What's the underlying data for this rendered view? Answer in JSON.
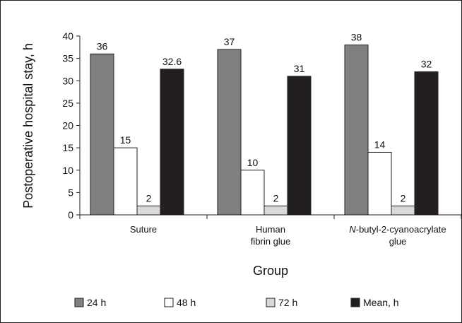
{
  "chart_data": {
    "type": "bar",
    "categories": [
      [
        "Suture"
      ],
      [
        "Human",
        "fibrin glue"
      ],
      [
        "N-butyl-2-cyanoacrylate",
        "glue"
      ]
    ],
    "series": [
      {
        "name": "24 h",
        "values": [
          36,
          37,
          38
        ],
        "color": "#808080"
      },
      {
        "name": "48 h",
        "values": [
          15,
          10,
          14
        ],
        "color": "#ffffff"
      },
      {
        "name": "72 h",
        "values": [
          2,
          2,
          2
        ],
        "color": "#d9d9d9"
      },
      {
        "name": "Mean, h",
        "values": [
          32.6,
          31,
          32
        ],
        "color": "#231f20"
      }
    ],
    "data_labels": [
      [
        "36",
        "37",
        "38"
      ],
      [
        "15",
        "10",
        "14"
      ],
      [
        "2",
        "2",
        "2"
      ],
      [
        "32.6",
        "31",
        "32"
      ]
    ],
    "xlabel": "Group",
    "ylabel": "Postoperative hospital stay, h",
    "ylim": [
      0,
      40
    ],
    "yticks": [
      0,
      5,
      10,
      15,
      20,
      25,
      30,
      35,
      40
    ],
    "grid": false,
    "legend_position": "bottom"
  }
}
